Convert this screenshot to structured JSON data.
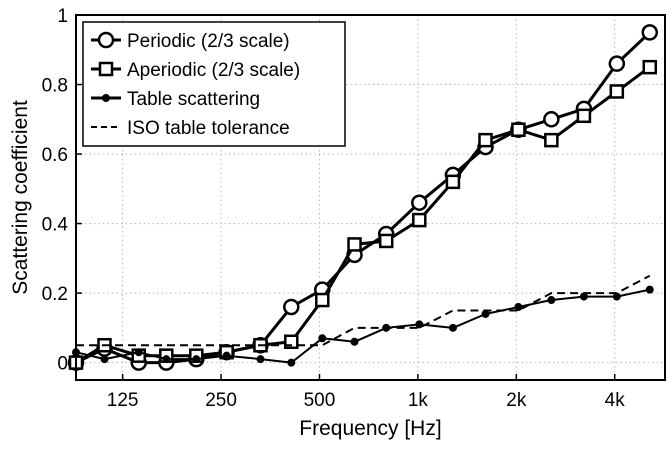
{
  "chart_data": {
    "type": "line",
    "xlabel": "Frequency [Hz]",
    "ylabel": "Scattering coefficient",
    "xscale": "log",
    "ylim": [
      -0.05,
      1.0
    ],
    "xlim": [
      90,
      5700
    ],
    "grid": true,
    "legend_position": "top-left",
    "x_ticks": [
      {
        "value": 125,
        "label": "125"
      },
      {
        "value": 250,
        "label": "250"
      },
      {
        "value": 500,
        "label": "500"
      },
      {
        "value": 1000,
        "label": "1k"
      },
      {
        "value": 2000,
        "label": "2k"
      },
      {
        "value": 4000,
        "label": "4k"
      }
    ],
    "y_ticks": [
      {
        "value": 0,
        "label": "0"
      },
      {
        "value": 0.2,
        "label": "0.2"
      },
      {
        "value": 0.4,
        "label": "0.4"
      },
      {
        "value": 0.6,
        "label": "0.6"
      },
      {
        "value": 0.8,
        "label": "0.8"
      },
      {
        "value": 1,
        "label": "1"
      }
    ],
    "series": [
      {
        "name": "Periodic (2/3 scale)",
        "marker": "circle",
        "line": "solid",
        "color": "#000000",
        "x": [
          90,
          110,
          140,
          170,
          210,
          260,
          330,
          410,
          510,
          640,
          800,
          1010,
          1280,
          1610,
          2030,
          2560,
          3220,
          4060,
          5120
        ],
        "y": [
          0.0,
          0.04,
          0.0,
          0.0,
          0.01,
          0.03,
          0.05,
          0.16,
          0.21,
          0.31,
          0.37,
          0.46,
          0.54,
          0.62,
          0.67,
          0.7,
          0.73,
          0.86,
          0.95
        ]
      },
      {
        "name": "Aperiodic (2/3 scale)",
        "marker": "square",
        "line": "solid",
        "color": "#000000",
        "x": [
          90,
          110,
          140,
          170,
          210,
          260,
          330,
          410,
          510,
          640,
          800,
          1010,
          1280,
          1610,
          2030,
          2560,
          3220,
          4060,
          5120
        ],
        "y": [
          0.0,
          0.05,
          0.02,
          0.02,
          0.02,
          0.03,
          0.05,
          0.06,
          0.18,
          0.34,
          0.35,
          0.41,
          0.52,
          0.64,
          0.67,
          0.64,
          0.71,
          0.78,
          0.85
        ]
      },
      {
        "name": "Table scattering",
        "marker": "dot",
        "line": "solid",
        "color": "#000000",
        "x": [
          90,
          110,
          140,
          170,
          210,
          260,
          330,
          410,
          510,
          640,
          800,
          1010,
          1280,
          1610,
          2030,
          2560,
          3220,
          4060,
          5120
        ],
        "y": [
          0.03,
          0.01,
          0.03,
          0.01,
          0.01,
          0.02,
          0.01,
          0.0,
          0.07,
          0.06,
          0.1,
          0.11,
          0.1,
          0.14,
          0.16,
          0.18,
          0.19,
          0.19,
          0.21
        ]
      },
      {
        "name": "ISO table tolerance",
        "marker": "none",
        "line": "dashed",
        "color": "#000000",
        "x": [
          90,
          110,
          140,
          170,
          210,
          260,
          330,
          410,
          510,
          640,
          800,
          1010,
          1280,
          1610,
          2030,
          2560,
          3220,
          4060,
          5120
        ],
        "y": [
          0.05,
          0.05,
          0.05,
          0.05,
          0.05,
          0.05,
          0.05,
          0.05,
          0.05,
          0.1,
          0.1,
          0.1,
          0.15,
          0.15,
          0.15,
          0.2,
          0.2,
          0.2,
          0.25
        ]
      }
    ]
  }
}
